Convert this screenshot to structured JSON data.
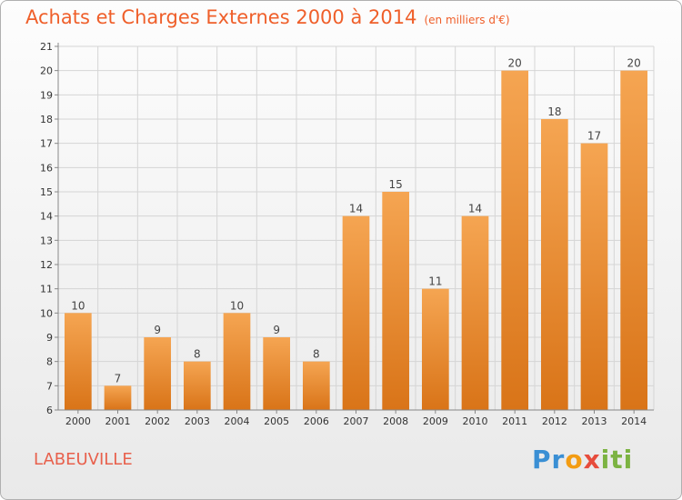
{
  "header": {
    "title": "Achats et Charges Externes 2000 à 2014",
    "subtitle": "(en milliers d'€)"
  },
  "footer": {
    "place": "LABEUVILLE",
    "brand_letters": [
      "P",
      "r",
      "o",
      "x",
      "i",
      "t",
      "i"
    ],
    "brand_colors": [
      "#3a8fd4",
      "#3a8fd4",
      "#f39c12",
      "#e74c3c",
      "#7cb342",
      "#7cb342",
      "#7cb342"
    ]
  },
  "colors": {
    "bar_top": "#f5a552",
    "bar_bottom": "#d97418",
    "title": "#ef5f2a",
    "grid": "#d5d5d5"
  },
  "chart_data": {
    "type": "bar",
    "categories": [
      "2000",
      "2001",
      "2002",
      "2003",
      "2004",
      "2005",
      "2006",
      "2007",
      "2008",
      "2009",
      "2010",
      "2011",
      "2012",
      "2013",
      "2014"
    ],
    "values": [
      10,
      7,
      9,
      8,
      10,
      9,
      8,
      14,
      15,
      11,
      14,
      20,
      18,
      17,
      20
    ],
    "ylim": [
      6,
      21
    ],
    "yticks": [
      6,
      7,
      8,
      9,
      10,
      11,
      12,
      13,
      14,
      15,
      16,
      17,
      18,
      19,
      20,
      21
    ],
    "grid": true,
    "data_labels": true
  }
}
